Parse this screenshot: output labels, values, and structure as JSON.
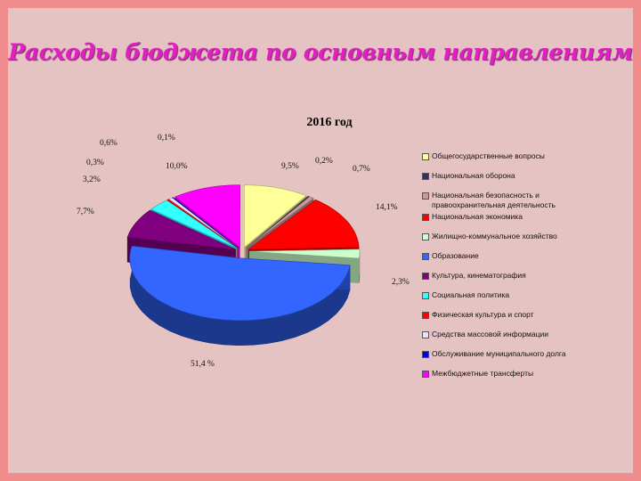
{
  "slide": {
    "title": "Расходы бюджета по основным направлениям"
  },
  "chart_data": {
    "type": "pie",
    "title": "2016 год",
    "legend_position": "right",
    "slices": [
      {
        "name": "Общегосударственные вопросы",
        "label": "9,5%",
        "value": 9.5,
        "color": "#ffff99"
      },
      {
        "name": "Национальная оборона",
        "label": "0,2%",
        "value": 0.2,
        "color": "#333366"
      },
      {
        "name": "Национальная безопасность и правоохранительная деятельность",
        "label": "0,7%",
        "value": 0.7,
        "color": "#cc9999"
      },
      {
        "name": "Национальная экономика",
        "label": "14,1%",
        "value": 14.1,
        "color": "#ff0000"
      },
      {
        "name": "Жилищно-коммунальное хозяйство",
        "label": "2,3%",
        "value": 2.3,
        "color": "#ccffcc"
      },
      {
        "name": "Образование",
        "label": "51,4 %",
        "value": 51.4,
        "color": "#3366ff"
      },
      {
        "name": "Культура, кинематография",
        "label": "7,7%",
        "value": 7.7,
        "color": "#800080"
      },
      {
        "name": "Социальная политика",
        "label": "3,2%",
        "value": 3.2,
        "color": "#33ffff"
      },
      {
        "name": "Физическая культура и спорт",
        "label": "0,3%",
        "value": 0.3,
        "color": "#ff0000"
      },
      {
        "name": "Средства массовой информации",
        "label": "0,6%",
        "value": 0.6,
        "color": "#e8e0f8"
      },
      {
        "name": "Обслуживание муниципального долга",
        "label": "0,1%",
        "value": 0.1,
        "color": "#0000ff"
      },
      {
        "name": "Межбюджетные трансферты",
        "label": "10,0%",
        "value": 10.0,
        "color": "#ff00ff"
      }
    ]
  }
}
